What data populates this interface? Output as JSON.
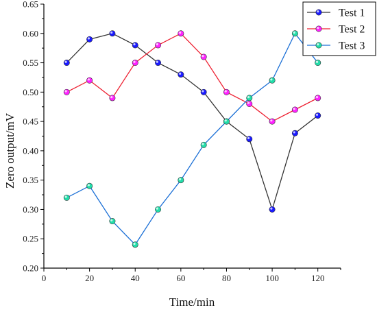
{
  "chart_data": {
    "type": "line",
    "xlabel": "Time/min",
    "ylabel": "Zero output/mV",
    "xlim": [
      0,
      130
    ],
    "ylim": [
      0.2,
      0.65
    ],
    "xticks": [
      0,
      20,
      40,
      60,
      80,
      100,
      120
    ],
    "yticks": [
      0.2,
      0.25,
      0.3,
      0.35,
      0.4,
      0.45,
      0.5,
      0.55,
      0.6,
      0.65
    ],
    "x": [
      10,
      20,
      30,
      40,
      50,
      60,
      70,
      80,
      90,
      100,
      110,
      120
    ],
    "grid": false,
    "legend_position": "top-right",
    "series": [
      {
        "name": "Test 1",
        "color": "#333333",
        "marker_color": "#1a1aff",
        "values": [
          0.55,
          0.59,
          0.6,
          0.58,
          0.55,
          0.53,
          0.5,
          0.45,
          0.42,
          0.3,
          0.43,
          0.46
        ]
      },
      {
        "name": "Test 2",
        "color": "#ee2233",
        "marker_color": "#ff22ff",
        "values": [
          0.5,
          0.52,
          0.49,
          0.55,
          0.58,
          0.6,
          0.56,
          0.5,
          0.48,
          0.45,
          0.47,
          0.49
        ]
      },
      {
        "name": "Test 3",
        "color": "#1a6fd6",
        "marker_color": "#22ddaa",
        "values": [
          0.32,
          0.34,
          0.28,
          0.24,
          0.3,
          0.35,
          0.41,
          0.45,
          0.49,
          0.52,
          0.6,
          0.55
        ]
      }
    ]
  }
}
